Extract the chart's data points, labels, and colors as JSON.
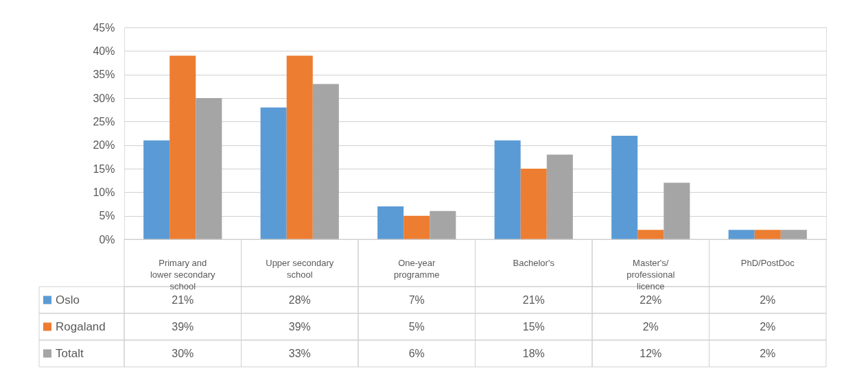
{
  "chart_data": {
    "type": "bar",
    "categories": [
      "Primary and lower secondary school",
      "Upper secondary school",
      "One-year programme",
      "Bachelor's",
      "Master's/ professional licence",
      "PhD/PostDoc"
    ],
    "series": [
      {
        "name": "Oslo",
        "color": "#5b9bd5",
        "values": [
          21,
          28,
          7,
          21,
          22,
          2
        ],
        "value_labels": [
          "21%",
          "28%",
          "7%",
          "21%",
          "22%",
          "2%"
        ]
      },
      {
        "name": "Rogaland",
        "color": "#ed7d31",
        "values": [
          39,
          39,
          5,
          15,
          2,
          2
        ],
        "value_labels": [
          "39%",
          "39%",
          "5%",
          "15%",
          "2%",
          "2%"
        ]
      },
      {
        "name": "Totalt",
        "color": "#a5a5a5",
        "values": [
          30,
          33,
          6,
          18,
          12,
          2
        ],
        "value_labels": [
          "30%",
          "33%",
          "6%",
          "18%",
          "12%",
          "2%"
        ]
      }
    ],
    "ylim": [
      0,
      45
    ],
    "yticks": [
      {
        "value": 0,
        "label": "0%"
      },
      {
        "value": 5,
        "label": "5%"
      },
      {
        "value": 10,
        "label": "10%"
      },
      {
        "value": 15,
        "label": "15%"
      },
      {
        "value": 20,
        "label": "20%"
      },
      {
        "value": 25,
        "label": "25%"
      },
      {
        "value": 30,
        "label": "30%"
      },
      {
        "value": 35,
        "label": "35%"
      },
      {
        "value": 40,
        "label": "40%"
      },
      {
        "value": 45,
        "label": "45%"
      }
    ],
    "grid": "y",
    "legend": "bottom"
  }
}
